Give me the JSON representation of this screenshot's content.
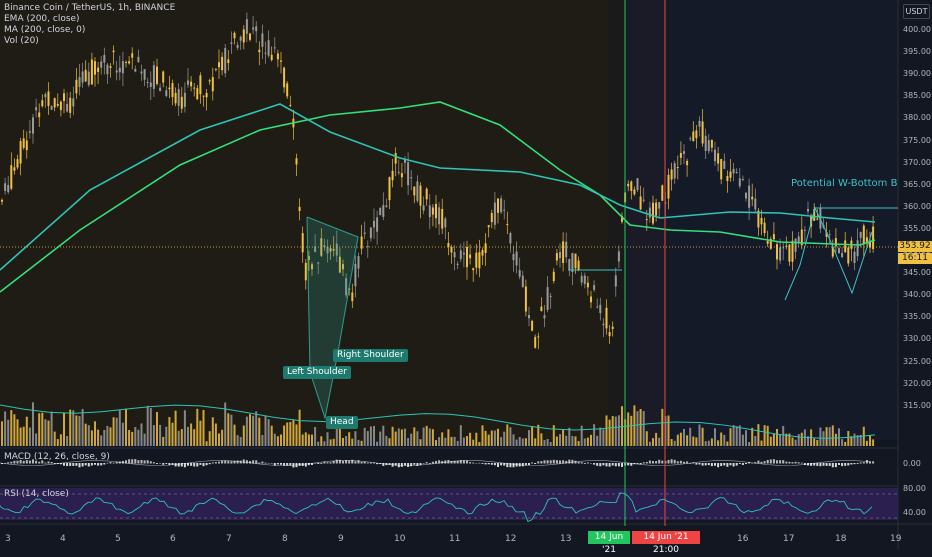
{
  "header": {
    "title": "Binance Coin / TetherUS, 1h, BINANCE",
    "indicators": [
      "EMA (200, close)",
      "MA (200, close, 0)",
      "Vol (20)"
    ],
    "currency_button": "USDT"
  },
  "subpanes": {
    "macd": "MACD (12, 26, close, 9)",
    "rsi": "RSI (14, close)"
  },
  "price_axis": {
    "labels": [
      "400.00",
      "395.00",
      "390.00",
      "385.00",
      "380.00",
      "375.00",
      "370.00",
      "365.00",
      "360.00",
      "355.00",
      "350.00",
      "345.00",
      "340.00",
      "335.00",
      "330.00",
      "325.00",
      "320.00",
      "315.00"
    ],
    "last_price": "353.92",
    "countdown": "16:11"
  },
  "macd_axis": {
    "labels": [
      "0.00"
    ]
  },
  "rsi_axis": {
    "labels": [
      "80.00",
      "40.00"
    ]
  },
  "time_axis": {
    "labels": [
      "3",
      "4",
      "5",
      "6",
      "7",
      "8",
      "9",
      "10",
      "11",
      "12",
      "13",
      "16",
      "17",
      "18",
      "19"
    ],
    "badge_green": "14 Jun '21",
    "badge_red": "14 Jun '21  21:00"
  },
  "annotations": {
    "left_shoulder": "Left Shoulder",
    "right_shoulder": "Right Shoulder",
    "head": "Head",
    "w_bottom": "Potential W-Bottom Breakout"
  },
  "colors": {
    "background": "#131722",
    "up_candle": "#f0c040",
    "down_candle": "#9a9a9a",
    "ema": "#33e07a",
    "ma": "#2ec4b6",
    "green_marker": "#22c55e",
    "red_marker": "#ef4444",
    "rsi_band": "#2a1f4e"
  }
}
